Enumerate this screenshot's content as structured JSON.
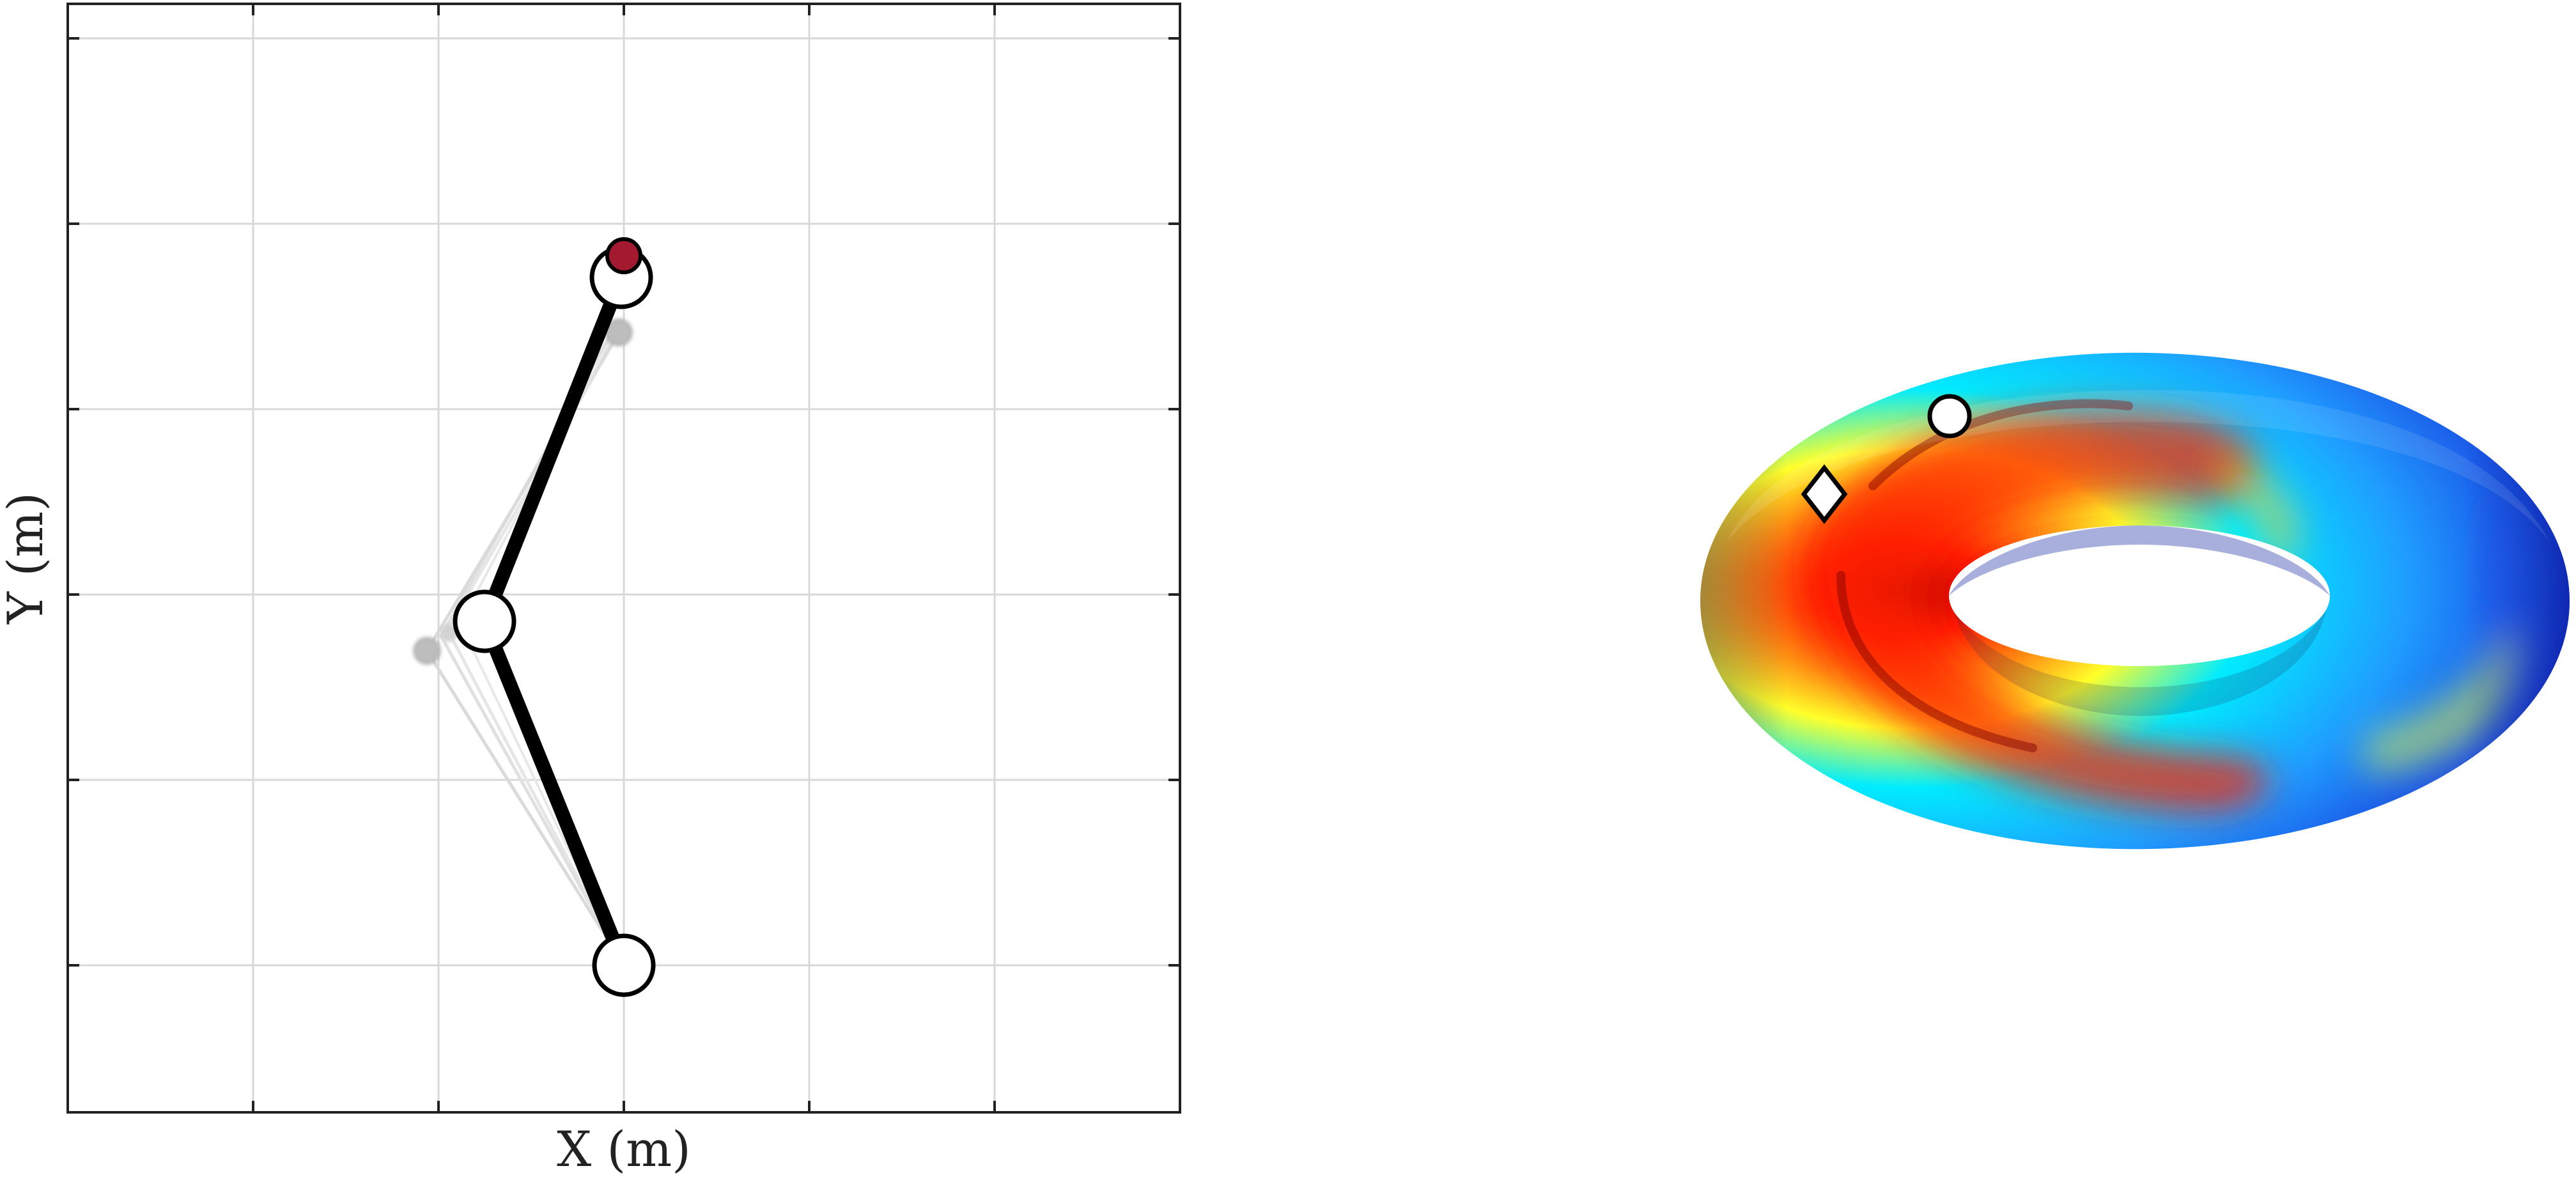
{
  "left_panel": {
    "x_label": "X (m)",
    "y_label": "Y (m)"
  },
  "right_panel": {
    "colormap": [
      "#1a00c8",
      "#1f7bff",
      "#00ecff",
      "#ffff2a",
      "#ff9a10",
      "#ff1a00",
      "#b00000"
    ],
    "markers": [
      "circle",
      "diamond"
    ]
  },
  "colors": {
    "arm_link": "#000000",
    "joint_fill": "#ffffff",
    "ghost": "#bdbdbd",
    "target": "#a3192f",
    "grid": "#d8d8d8",
    "frame": "#222222"
  },
  "icons": [
    "joint-icon",
    "target-point-icon",
    "ghost-joint-icon",
    "diamond-marker-icon",
    "circle-marker-icon"
  ]
}
